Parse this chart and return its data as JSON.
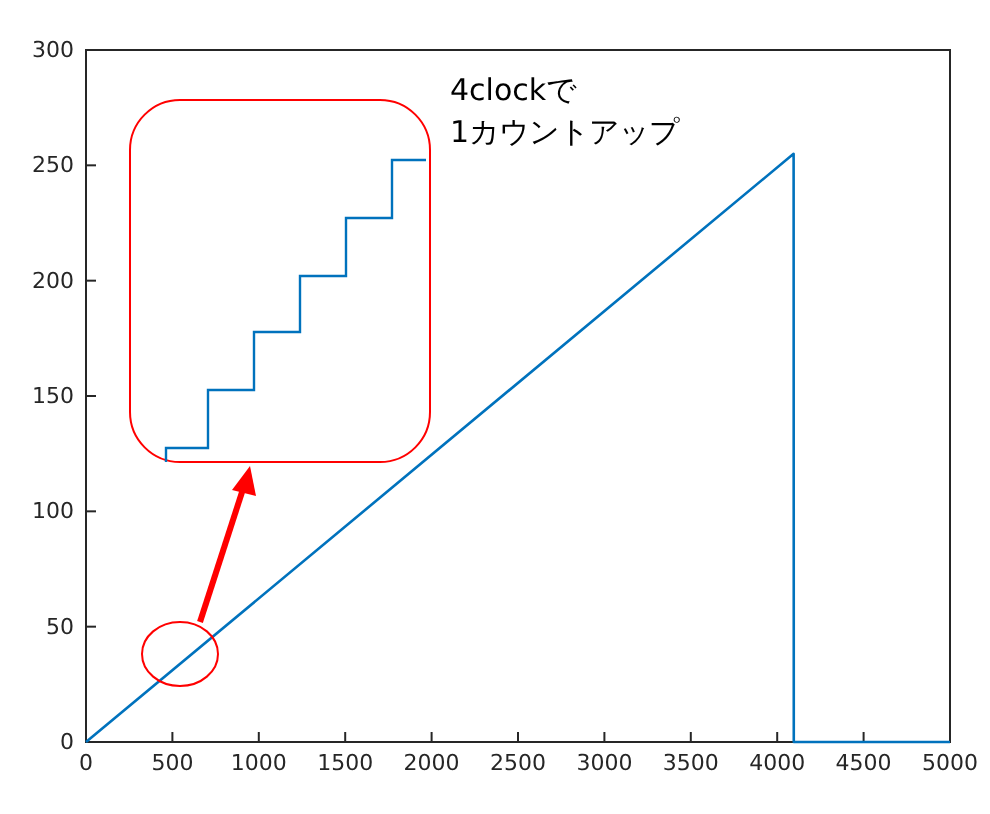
{
  "chart_data": {
    "type": "line",
    "x": [
      0,
      4095,
      4096,
      5000
    ],
    "series": [
      {
        "color": "#0072bd",
        "values": [
          0,
          255,
          0,
          0
        ]
      }
    ],
    "xlim": [
      0,
      5000
    ],
    "xticks": [
      0,
      500,
      1000,
      1500,
      2000,
      2500,
      3000,
      3500,
      4000,
      4500,
      5000
    ],
    "ylim": [
      0,
      300
    ],
    "yticks": [
      0,
      50,
      100,
      150,
      200,
      250,
      300
    ],
    "grid": false,
    "marker": "none",
    "line_style": "solid",
    "annotations": [
      "4clockで",
      "1カウントアップ"
    ]
  }
}
